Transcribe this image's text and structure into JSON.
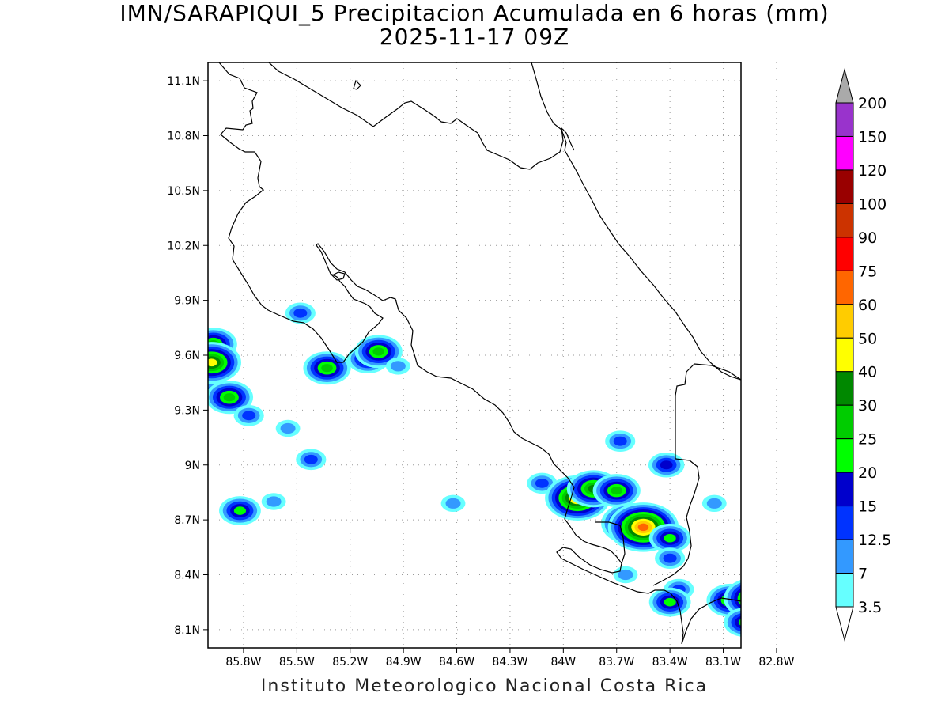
{
  "header": {
    "title": "IMN/SARAPIQUI_5 Precipitacion Acumulada en 6 horas (mm)",
    "subtitle": "2025-11-17 09Z"
  },
  "footer": {
    "credit": "Instituto Meteorologico Nacional Costa Rica"
  },
  "map": {
    "lat_range": [
      8.0,
      11.2
    ],
    "lon_range": [
      -86.0,
      -83.0
    ],
    "lat_ticks": [
      "11.1N",
      "10.8N",
      "10.5N",
      "10.2N",
      "9.9N",
      "9.6N",
      "9.3N",
      "9N",
      "8.7N",
      "8.4N",
      "8.1N"
    ],
    "lon_ticks": [
      "85.8W",
      "85.5W",
      "85.2W",
      "84.9W",
      "84.6W",
      "84.3W",
      "84W",
      "83.7W",
      "83.4W",
      "83.1W",
      "82.8W"
    ],
    "grid": "dotted",
    "coastline_color": "#000000",
    "precip_cells": [
      {
        "lon": -85.97,
        "lat": 9.66,
        "peak": 25
      },
      {
        "lon": -85.98,
        "lat": 9.56,
        "peak": 40
      },
      {
        "lon": -85.98,
        "lat": 9.4,
        "peak": 12.5
      },
      {
        "lon": -85.88,
        "lat": 9.37,
        "peak": 25
      },
      {
        "lon": -85.77,
        "lat": 9.27,
        "peak": 12.5
      },
      {
        "lon": -85.48,
        "lat": 9.83,
        "peak": 12.5
      },
      {
        "lon": -85.33,
        "lat": 9.53,
        "peak": 25
      },
      {
        "lon": -85.1,
        "lat": 9.58,
        "peak": 20
      },
      {
        "lon": -85.04,
        "lat": 9.62,
        "peak": 25
      },
      {
        "lon": -84.93,
        "lat": 9.54,
        "peak": 7
      },
      {
        "lon": -85.42,
        "lat": 9.03,
        "peak": 12.5
      },
      {
        "lon": -85.82,
        "lat": 8.75,
        "peak": 20
      },
      {
        "lon": -85.63,
        "lat": 8.8,
        "peak": 7
      },
      {
        "lon": -85.55,
        "lat": 9.2,
        "peak": 7
      },
      {
        "lon": -84.62,
        "lat": 8.79,
        "peak": 7
      },
      {
        "lon": -84.12,
        "lat": 8.9,
        "peak": 12.5
      },
      {
        "lon": -83.92,
        "lat": 8.82,
        "peak": 50
      },
      {
        "lon": -83.83,
        "lat": 8.87,
        "peak": 30
      },
      {
        "lon": -83.7,
        "lat": 8.86,
        "peak": 25
      },
      {
        "lon": -83.68,
        "lat": 9.13,
        "peak": 12.5
      },
      {
        "lon": -83.62,
        "lat": 8.68,
        "peak": 40
      },
      {
        "lon": -83.55,
        "lat": 8.66,
        "peak": 60
      },
      {
        "lon": -83.42,
        "lat": 9.0,
        "peak": 15
      },
      {
        "lon": -83.4,
        "lat": 8.6,
        "peak": 20
      },
      {
        "lon": -83.4,
        "lat": 8.49,
        "peak": 12.5
      },
      {
        "lon": -83.35,
        "lat": 8.32,
        "peak": 12.5
      },
      {
        "lon": -83.4,
        "lat": 8.25,
        "peak": 20
      },
      {
        "lon": -83.15,
        "lat": 8.79,
        "peak": 7
      },
      {
        "lon": -83.06,
        "lat": 8.26,
        "peak": 25
      },
      {
        "lon": -82.93,
        "lat": 8.27,
        "peak": 40
      },
      {
        "lon": -82.98,
        "lat": 8.14,
        "peak": 20
      },
      {
        "lon": -82.85,
        "lat": 8.08,
        "peak": 25
      },
      {
        "lon": -83.65,
        "lat": 8.4,
        "peak": 7
      }
    ]
  },
  "colorbar": {
    "levels": [
      "3.5",
      "7",
      "12.5",
      "15",
      "20",
      "25",
      "30",
      "40",
      "50",
      "60",
      "75",
      "90",
      "100",
      "120",
      "150",
      "200"
    ],
    "colors": [
      "#ffffff",
      "#66ffff",
      "#3399ff",
      "#0033ff",
      "#0000cc",
      "#00ff00",
      "#00cc00",
      "#008800",
      "#ffff00",
      "#ffcc00",
      "#ff6600",
      "#ff0000",
      "#cc3300",
      "#990000",
      "#ff00ff",
      "#9933cc",
      "#f5f5f5",
      "#aaaaaa"
    ]
  }
}
